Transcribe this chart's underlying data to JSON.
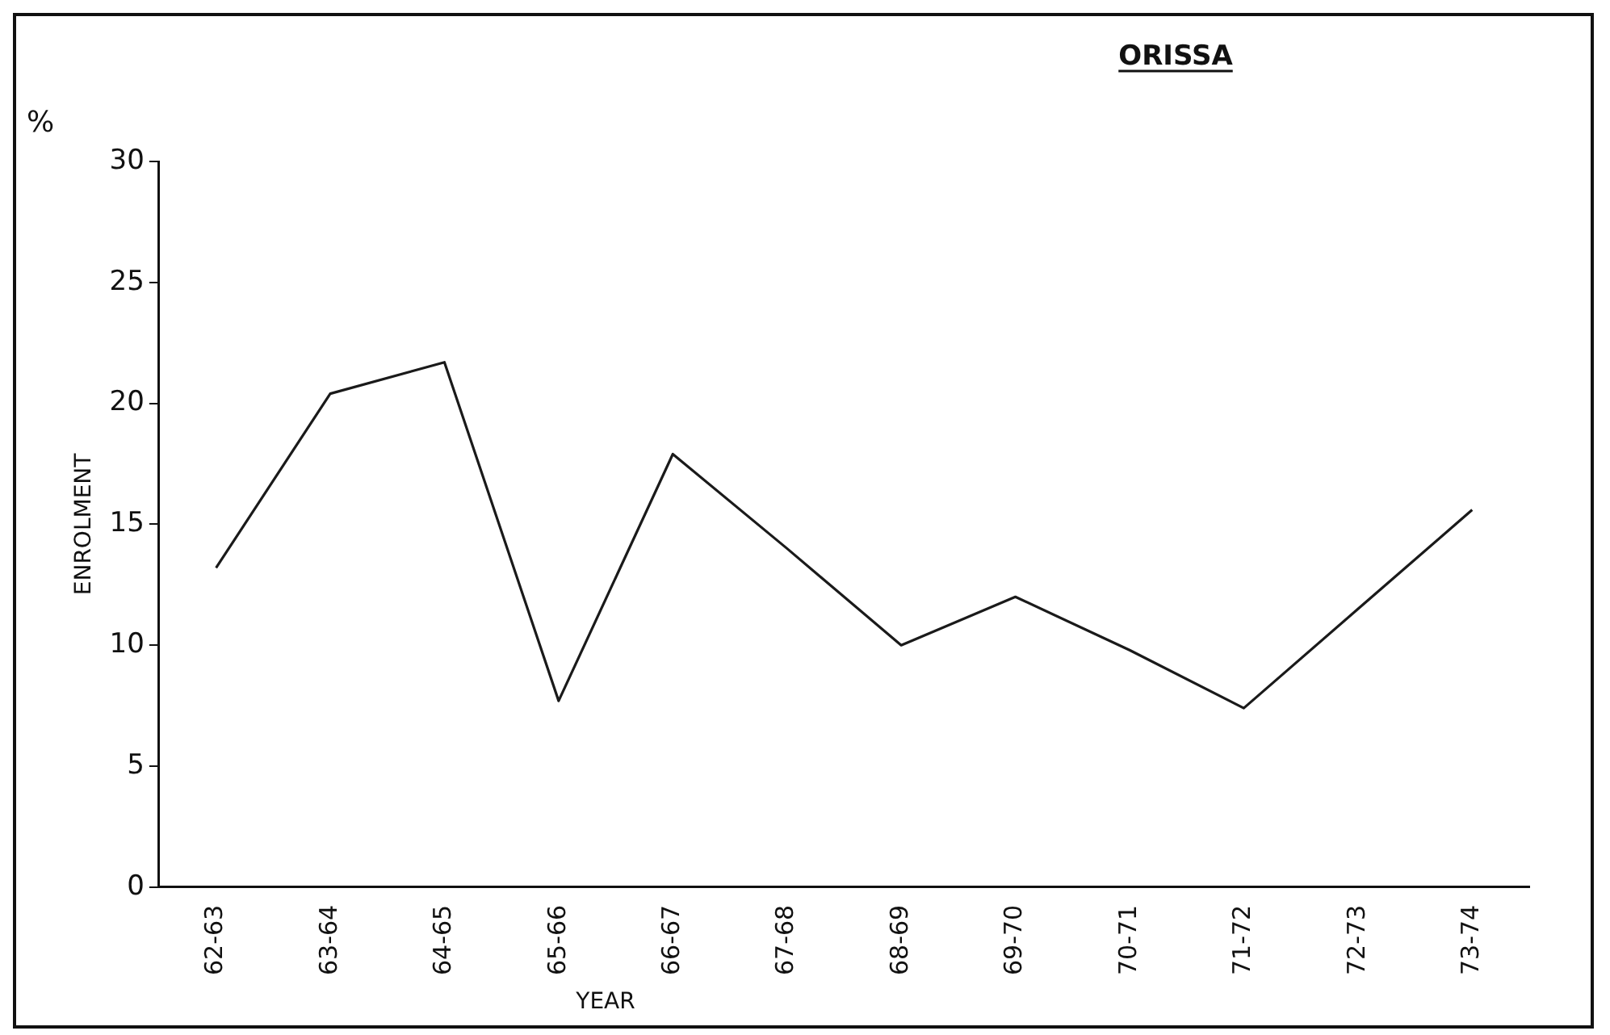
{
  "chart_data": {
    "type": "line",
    "title": "ORISSA",
    "xlabel": "YEAR",
    "ylabel": "ENROLMENT",
    "annotations": [
      "%"
    ],
    "categories": [
      "62-63",
      "63-64",
      "64-65",
      "65-66",
      "66-67",
      "67-68",
      "68-69",
      "69-70",
      "70-71",
      "71-72",
      "72-73",
      "73-74"
    ],
    "series": [
      {
        "color": "#1a1a1a",
        "values": [
          13.2,
          20.4,
          21.7,
          7.7,
          17.9,
          14.0,
          10.0,
          12.0,
          9.8,
          7.4,
          11.5,
          15.6
        ]
      }
    ],
    "ylim": [
      0,
      30
    ],
    "yticks": [
      0,
      5,
      10,
      15,
      20,
      25,
      30
    ],
    "grid": false,
    "legend": false,
    "marker": "none",
    "line_style": "solid"
  }
}
